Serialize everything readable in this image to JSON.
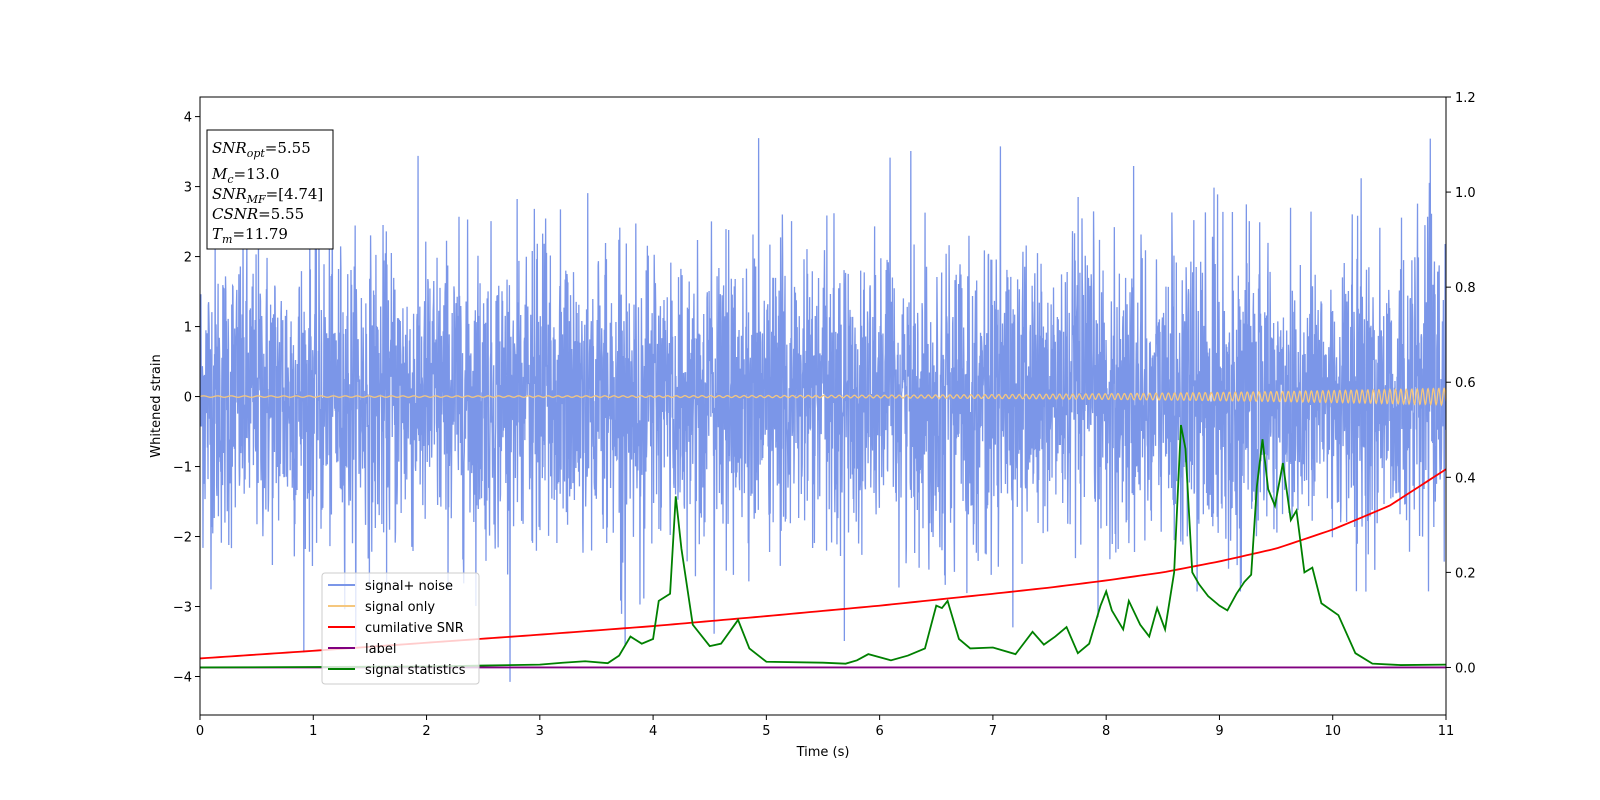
{
  "chart_data": {
    "type": "line",
    "title": "",
    "xlabel": "Time (s)",
    "ylabel": "Whitened strain",
    "xlim": [
      0,
      11
    ],
    "ylim": [
      -4.55,
      4.28
    ],
    "y2lim": [
      -0.1,
      1.2
    ],
    "x_ticks": [
      0,
      1,
      2,
      3,
      4,
      5,
      6,
      7,
      8,
      9,
      10,
      11
    ],
    "y_ticks": [
      -4,
      -3,
      -2,
      -1,
      0,
      1,
      2,
      3,
      4
    ],
    "y2_ticks": [
      "0.0",
      "0.2",
      "0.4",
      "0.6",
      "0.8",
      "1.0",
      "1.2"
    ],
    "grid": false,
    "legend_position": "lower-left",
    "annotation": {
      "lines": [
        {
          "sym": "SNR",
          "sub": "opt",
          "val": "=5.55"
        },
        {
          "sym": "M",
          "sub": "c",
          "val": "=13.0"
        },
        {
          "sym": "SNR",
          "sub": "MF",
          "val": "=[4.74]"
        },
        {
          "sym": "CSNR",
          "sub": "",
          "val": "=5.55"
        },
        {
          "sym": "T",
          "sub": "m",
          "val": "=11.79"
        }
      ]
    },
    "series": [
      {
        "name": "signal+ noise",
        "axis": "left",
        "color": "#7b96e8",
        "kind": "noise",
        "description_range": [
          -4.2,
          3.9
        ]
      },
      {
        "name": "signal only",
        "axis": "left",
        "color": "#f5c77e",
        "kind": "chirp",
        "amplitude_start": 0.01,
        "amplitude_end": 0.12
      },
      {
        "name": "cumilative SNR",
        "axis": "right",
        "color": "#ff0000",
        "x": [
          0,
          1,
          2,
          3,
          4,
          5,
          6,
          7,
          7.5,
          8,
          8.5,
          9,
          9.5,
          10,
          10.5,
          11
        ],
        "y": [
          0.019,
          0.035,
          0.052,
          0.069,
          0.087,
          0.108,
          0.13,
          0.155,
          0.168,
          0.183,
          0.2,
          0.223,
          0.25,
          0.29,
          0.34,
          0.417
        ]
      },
      {
        "name": "label",
        "axis": "right",
        "color": "#800080",
        "x": [
          0,
          11
        ],
        "y": [
          0,
          0
        ]
      },
      {
        "name": "signal statistics",
        "axis": "right",
        "color": "#008000",
        "x": [
          0,
          1,
          2,
          2.5,
          3,
          3.2,
          3.4,
          3.6,
          3.7,
          3.8,
          3.9,
          4.0,
          4.05,
          4.15,
          4.2,
          4.25,
          4.35,
          4.5,
          4.6,
          4.75,
          4.85,
          5.0,
          5.5,
          5.7,
          5.8,
          5.9,
          6.1,
          6.25,
          6.4,
          6.5,
          6.55,
          6.6,
          6.7,
          6.8,
          7.0,
          7.2,
          7.35,
          7.45,
          7.55,
          7.65,
          7.75,
          7.85,
          7.95,
          8.0,
          8.05,
          8.15,
          8.2,
          8.3,
          8.38,
          8.45,
          8.52,
          8.6,
          8.66,
          8.7,
          8.76,
          8.82,
          8.9,
          9.0,
          9.07,
          9.15,
          9.22,
          9.28,
          9.33,
          9.38,
          9.43,
          9.49,
          9.56,
          9.63,
          9.68,
          9.75,
          9.82,
          9.9,
          10.05,
          10.2,
          10.35,
          10.6,
          11
        ],
        "y": [
          0.0,
          0.001,
          0.002,
          0.004,
          0.006,
          0.01,
          0.013,
          0.009,
          0.025,
          0.065,
          0.05,
          0.06,
          0.14,
          0.155,
          0.36,
          0.25,
          0.09,
          0.045,
          0.05,
          0.1,
          0.04,
          0.012,
          0.01,
          0.008,
          0.015,
          0.028,
          0.015,
          0.025,
          0.04,
          0.13,
          0.125,
          0.14,
          0.06,
          0.04,
          0.042,
          0.028,
          0.075,
          0.048,
          0.065,
          0.085,
          0.03,
          0.05,
          0.13,
          0.16,
          0.12,
          0.08,
          0.14,
          0.09,
          0.065,
          0.125,
          0.08,
          0.2,
          0.51,
          0.46,
          0.2,
          0.175,
          0.15,
          0.13,
          0.12,
          0.155,
          0.18,
          0.195,
          0.38,
          0.48,
          0.375,
          0.34,
          0.43,
          0.31,
          0.33,
          0.2,
          0.21,
          0.135,
          0.11,
          0.03,
          0.008,
          0.005,
          0.006
        ]
      }
    ]
  }
}
